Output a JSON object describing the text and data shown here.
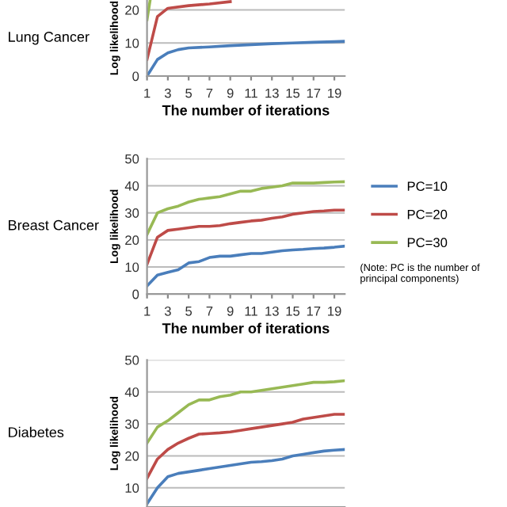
{
  "chart_data": [
    {
      "type": "line",
      "title": "Lung Cancer",
      "xlabel": "The number of iterations",
      "ylabel": "Log likelihood",
      "xlim": [
        1,
        20
      ],
      "ylim": [
        0,
        23
      ],
      "xticks": [
        1,
        3,
        5,
        7,
        9,
        11,
        13,
        15,
        17,
        19
      ],
      "yticks": [
        0,
        10,
        20
      ],
      "grid": "y",
      "legend": false,
      "series": [
        {
          "color": "#4a7ebb",
          "x": [
            1,
            2,
            3,
            4,
            5,
            7,
            9,
            11,
            13,
            15,
            17,
            19,
            20
          ],
          "values": [
            0,
            5,
            7,
            8,
            8.5,
            8.8,
            9.2,
            9.5,
            9.8,
            10,
            10.2,
            10.4,
            10.5
          ]
        },
        {
          "color": "#be4b48",
          "x": [
            1,
            2,
            3,
            5,
            7,
            9
          ],
          "values": [
            5,
            18,
            20.5,
            21.3,
            21.8,
            22.5
          ]
        },
        {
          "color": "#98b954",
          "x": [
            1,
            1.3
          ],
          "values": [
            17,
            23
          ]
        }
      ]
    },
    {
      "type": "line",
      "title": "Breast Cancer",
      "xlabel": "The number of iterations",
      "ylabel": "Log likelihood",
      "xlim": [
        1,
        20
      ],
      "ylim": [
        0,
        50
      ],
      "xticks": [
        1,
        3,
        5,
        7,
        9,
        11,
        13,
        15,
        17,
        19
      ],
      "yticks": [
        0,
        10,
        20,
        30,
        40,
        50
      ],
      "grid": "y",
      "legend": "right",
      "annotations": [
        "(Note: PC is the number of principal components)"
      ],
      "x": [
        1,
        2,
        3,
        4,
        5,
        6,
        7,
        8,
        9,
        10,
        11,
        12,
        13,
        14,
        15,
        16,
        17,
        18,
        19,
        20
      ],
      "series": [
        {
          "name": "PC=10",
          "color": "#4a7ebb",
          "values": [
            3,
            7,
            8,
            9,
            11.5,
            12,
            13.5,
            14,
            14,
            14.5,
            15,
            15,
            15.5,
            16,
            16.3,
            16.5,
            16.8,
            17,
            17.3,
            17.7
          ]
        },
        {
          "name": "PC=20",
          "color": "#be4b48",
          "values": [
            11,
            21,
            23.5,
            24,
            24.5,
            25,
            25,
            25.3,
            26,
            26.5,
            27,
            27.3,
            28,
            28.5,
            29.5,
            30,
            30.5,
            30.7,
            31,
            31
          ]
        },
        {
          "name": "PC=30",
          "color": "#98b954",
          "values": [
            22,
            30,
            31.5,
            32.5,
            34,
            35,
            35.5,
            36,
            37,
            38,
            38,
            39,
            39.5,
            40,
            41,
            41,
            41,
            41.2,
            41.4,
            41.5
          ]
        }
      ]
    },
    {
      "type": "line",
      "title": "Diabetes",
      "ylabel": "Log likelihood",
      "xlim": [
        1,
        20
      ],
      "ylim": [
        4,
        50
      ],
      "xticks": [
        1,
        3,
        5,
        7,
        9,
        11,
        13,
        15,
        17,
        19
      ],
      "yticks": [
        10,
        20,
        30,
        40,
        50
      ],
      "grid": "y",
      "legend": false,
      "tick_labels": "y",
      "x": [
        1,
        2,
        3,
        4,
        5,
        6,
        7,
        8,
        9,
        10,
        11,
        12,
        13,
        14,
        15,
        16,
        17,
        18,
        19,
        20
      ],
      "series": [
        {
          "color": "#4a7ebb",
          "values": [
            5,
            10,
            13.5,
            14.5,
            15,
            15.5,
            16,
            16.5,
            17,
            17.5,
            18,
            18.2,
            18.5,
            19,
            20,
            20.5,
            21,
            21.5,
            21.8,
            22
          ]
        },
        {
          "color": "#be4b48",
          "values": [
            13,
            19,
            22,
            24,
            25.5,
            26.8,
            27,
            27.2,
            27.5,
            28,
            28.5,
            29,
            29.5,
            30,
            30.5,
            31.5,
            32,
            32.5,
            33,
            33
          ]
        },
        {
          "color": "#98b954",
          "values": [
            24,
            29,
            31,
            33.5,
            36,
            37.5,
            37.5,
            38.5,
            39,
            40,
            40,
            40.5,
            41,
            41.5,
            42,
            42.5,
            43,
            43,
            43.2,
            43.5
          ]
        }
      ]
    }
  ]
}
